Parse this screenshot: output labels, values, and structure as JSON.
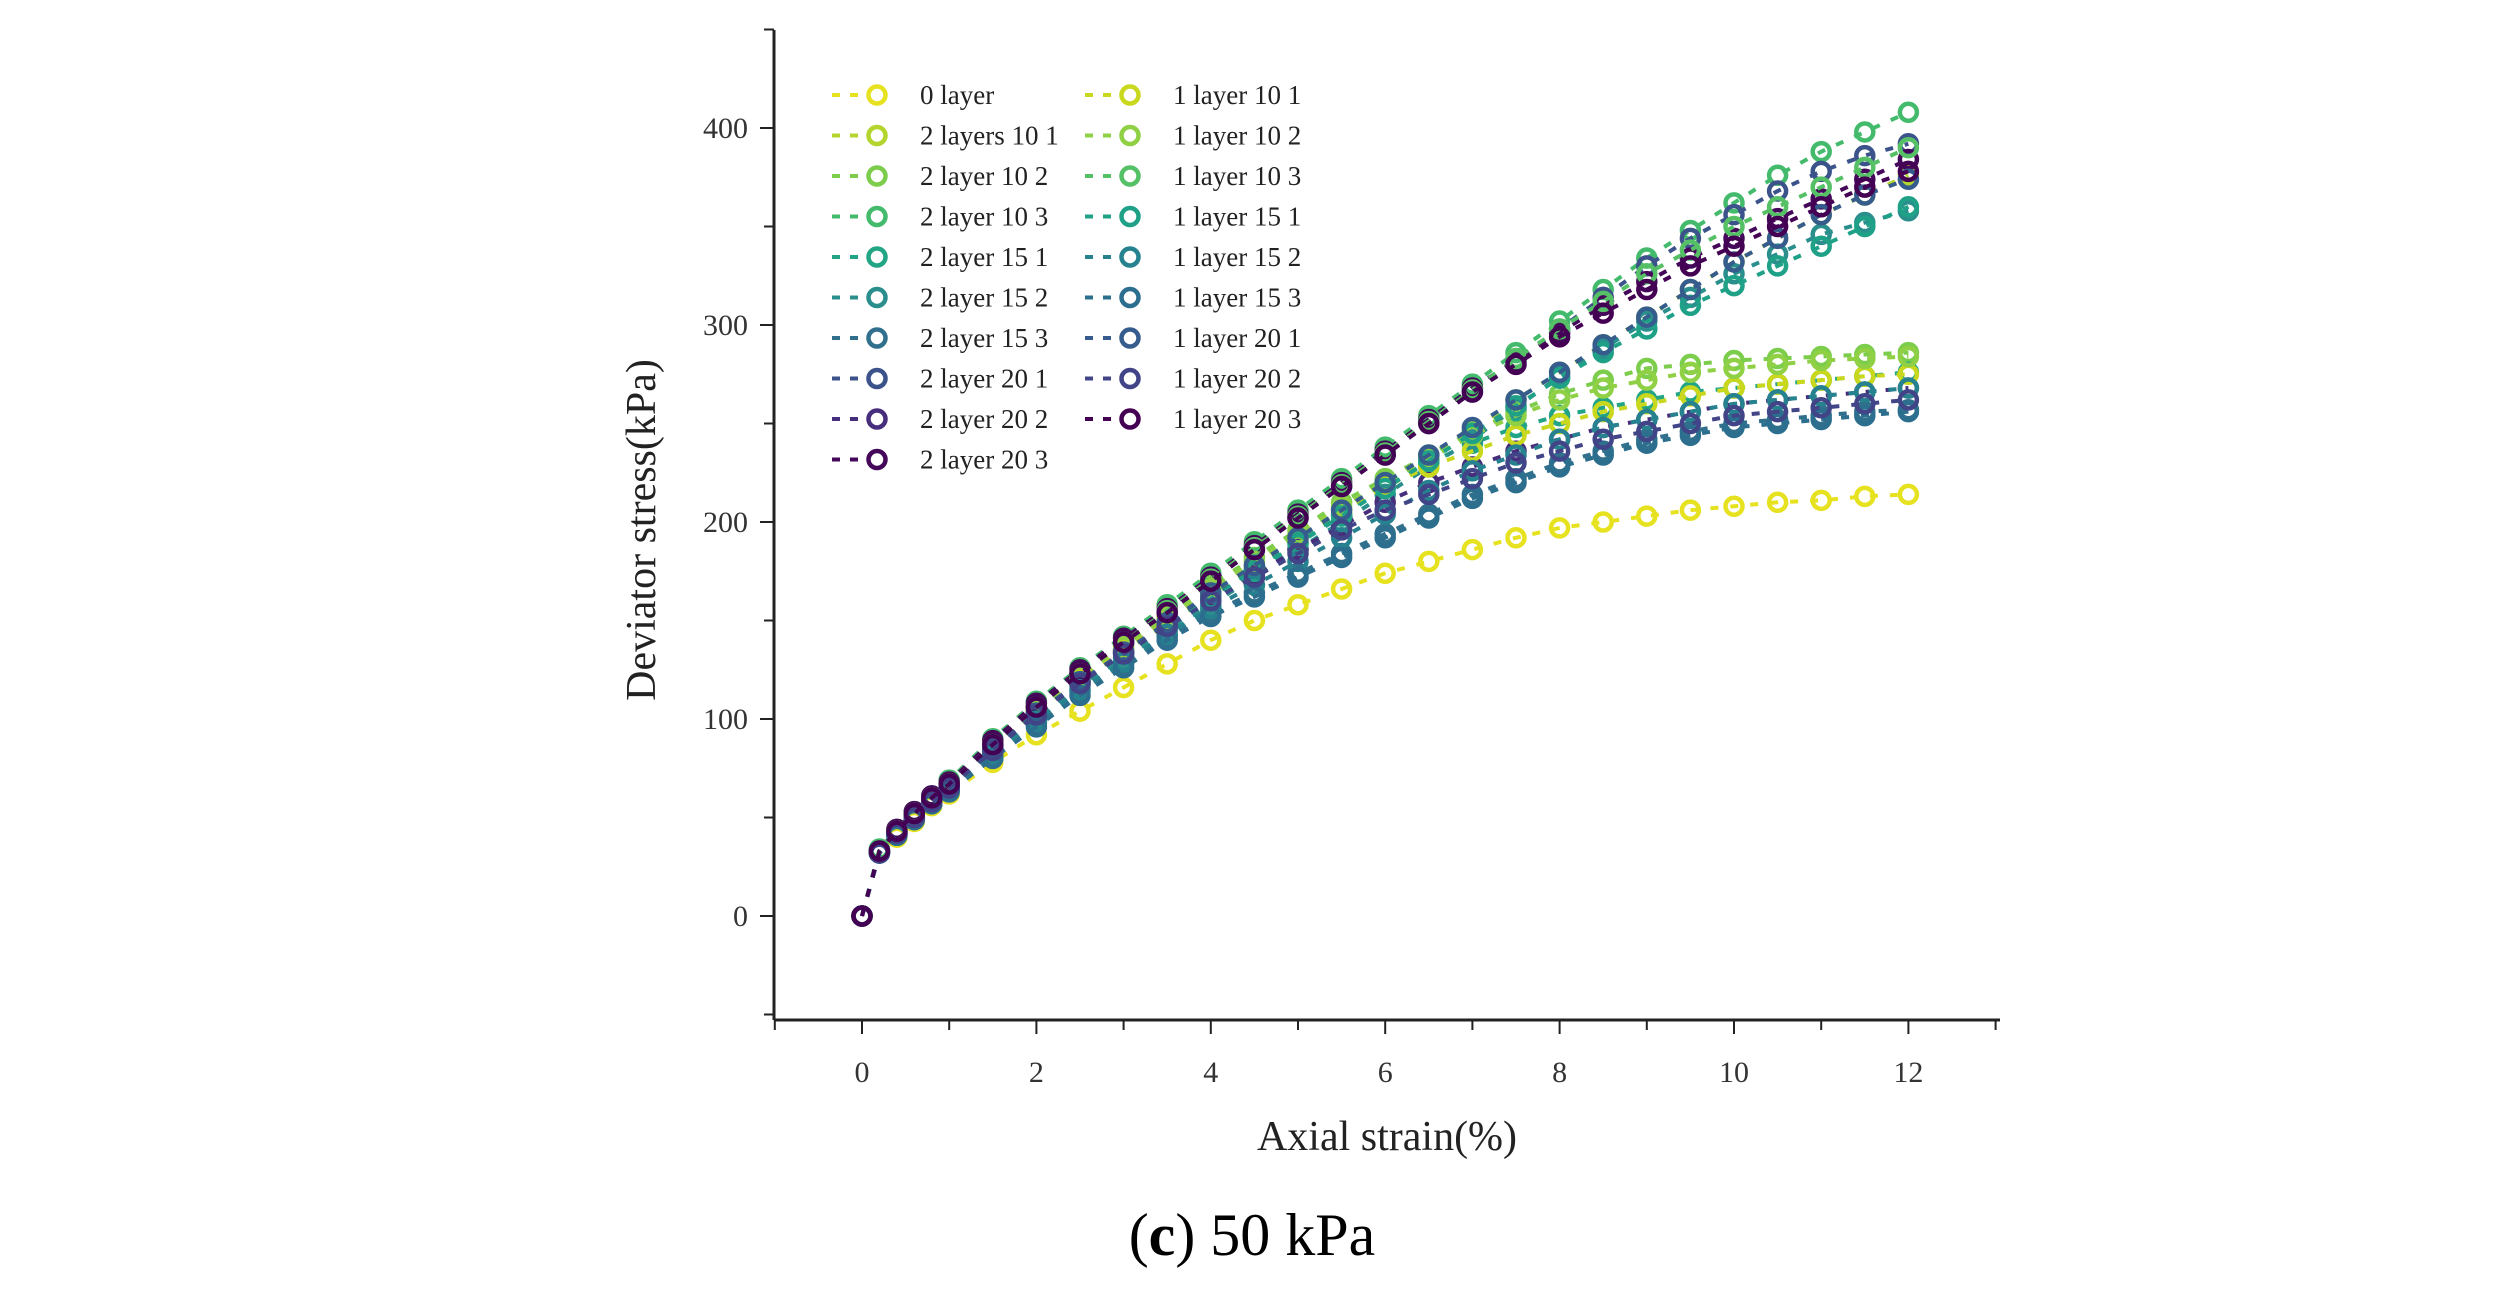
{
  "chart_data": {
    "type": "scatter",
    "title": "",
    "xlabel": "Axial strain(%)",
    "ylabel": "Deviator stress(kPa)",
    "xlim": [
      -1,
      13
    ],
    "ylim": [
      -50,
      450
    ],
    "x_ticks": [
      "0",
      "2",
      "4",
      "6",
      "8",
      "10",
      "12"
    ],
    "y_ticks": [
      "0",
      "100",
      "200",
      "300",
      "400"
    ],
    "caption": {
      "open": "(",
      "letter": "c",
      "close": ")",
      "text": " 50 kPa"
    },
    "legend_position": "top-left",
    "x": [
      0,
      0.2,
      0.4,
      0.6,
      0.8,
      1.0,
      1.5,
      2.0,
      2.5,
      3.0,
      3.5,
      4.0,
      4.5,
      5.0,
      5.5,
      6.0,
      6.5,
      7.0,
      7.5,
      8.0,
      8.5,
      9.0,
      9.5,
      10.0,
      10.5,
      11.0,
      11.5,
      12.0
    ],
    "series": [
      {
        "name": "0 layer",
        "color": "#e7e21f",
        "values": [
          0,
          32,
          40,
          48,
          56,
          62,
          78,
          92,
          104,
          116,
          128,
          140,
          150,
          158,
          166,
          174,
          180,
          186,
          192,
          197,
          200,
          203,
          206,
          208,
          210,
          211,
          213,
          214
        ]
      },
      {
        "name": "2 layers 10 1",
        "color": "#b4d52e",
        "values": [
          0,
          33,
          43,
          51,
          59,
          66,
          86,
          104,
          120,
          134,
          148,
          162,
          176,
          190,
          204,
          218,
          232,
          246,
          262,
          276,
          290,
          304,
          318,
          332,
          344,
          356,
          366,
          376
        ]
      },
      {
        "name": "2 layer 10 2",
        "color": "#7ccd4c",
        "values": [
          0,
          33,
          43,
          52,
          60,
          67,
          87,
          106,
          123,
          138,
          153,
          168,
          182,
          196,
          210,
          222,
          234,
          246,
          256,
          265,
          272,
          278,
          280,
          282,
          283,
          284,
          285,
          286
        ]
      },
      {
        "name": "2 layer 10 3",
        "color": "#44bb6c",
        "values": [
          0,
          34,
          44,
          53,
          61,
          69,
          90,
          109,
          126,
          142,
          158,
          174,
          190,
          206,
          222,
          238,
          254,
          270,
          286,
          302,
          318,
          334,
          348,
          362,
          376,
          388,
          398,
          408
        ]
      },
      {
        "name": "2 layer 15 1",
        "color": "#22a584",
        "values": [
          0,
          33,
          43,
          51,
          59,
          66,
          86,
          104,
          120,
          135,
          149,
          162,
          176,
          190,
          204,
          218,
          230,
          240,
          248,
          254,
          258,
          262,
          266,
          268,
          270,
          272,
          274,
          276
        ]
      },
      {
        "name": "2 layer 15 2",
        "color": "#2a8f8c",
        "values": [
          0,
          32,
          42,
          50,
          58,
          65,
          84,
          101,
          117,
          131,
          145,
          158,
          172,
          186,
          200,
          214,
          228,
          242,
          258,
          274,
          288,
          302,
          314,
          326,
          336,
          346,
          352,
          358
        ]
      },
      {
        "name": "2 layer 15 3",
        "color": "#31708d",
        "values": [
          0,
          32,
          41,
          49,
          57,
          64,
          82,
          98,
          114,
          128,
          142,
          154,
          164,
          174,
          184,
          194,
          204,
          214,
          222,
          230,
          236,
          242,
          246,
          250,
          252,
          254,
          256,
          257
        ]
      },
      {
        "name": "2 layer 20 1",
        "color": "#3b538a",
        "values": [
          0,
          33,
          43,
          52,
          60,
          67,
          87,
          106,
          123,
          139,
          154,
          170,
          186,
          202,
          218,
          234,
          250,
          266,
          282,
          298,
          314,
          330,
          344,
          356,
          368,
          378,
          386,
          392
        ]
      },
      {
        "name": "2 layer 20 2",
        "color": "#472e7c",
        "values": [
          0,
          32,
          42,
          50,
          58,
          65,
          85,
          103,
          119,
          134,
          148,
          162,
          174,
          186,
          198,
          210,
          220,
          228,
          236,
          242,
          248,
          252,
          256,
          260,
          262,
          264,
          266,
          268
        ]
      },
      {
        "name": "2 layer 20 3",
        "color": "#44075a",
        "values": [
          0,
          33,
          44,
          53,
          61,
          68,
          89,
          108,
          125,
          141,
          156,
          172,
          188,
          204,
          220,
          236,
          252,
          268,
          282,
          296,
          310,
          322,
          334,
          344,
          354,
          364,
          374,
          384
        ]
      },
      {
        "name": "1 layer 10 1",
        "color": "#c9d81c",
        "values": [
          0,
          33,
          43,
          51,
          59,
          66,
          86,
          104,
          120,
          135,
          150,
          164,
          178,
          192,
          206,
          218,
          228,
          236,
          244,
          250,
          256,
          260,
          264,
          268,
          270,
          272,
          274,
          275
        ]
      },
      {
        "name": "1 layer 10 2",
        "color": "#8fd045",
        "values": [
          0,
          33,
          43,
          52,
          60,
          67,
          87,
          105,
          122,
          137,
          152,
          166,
          180,
          194,
          208,
          220,
          232,
          244,
          254,
          262,
          268,
          272,
          276,
          278,
          280,
          282,
          283,
          284
        ]
      },
      {
        "name": "1 layer 10 3",
        "color": "#55c065",
        "values": [
          0,
          33,
          43,
          52,
          60,
          67,
          87,
          106,
          123,
          139,
          155,
          171,
          187,
          203,
          219,
          235,
          251,
          267,
          283,
          298,
          312,
          326,
          338,
          350,
          360,
          370,
          380,
          390
        ]
      },
      {
        "name": "1 layer 15 1",
        "color": "#1fa187",
        "values": [
          0,
          32,
          42,
          50,
          58,
          65,
          84,
          102,
          118,
          133,
          147,
          161,
          175,
          189,
          203,
          217,
          231,
          245,
          259,
          273,
          286,
          298,
          310,
          320,
          330,
          340,
          350,
          360
        ]
      },
      {
        "name": "1 layer 15 2",
        "color": "#26828e",
        "values": [
          0,
          32,
          41,
          49,
          57,
          64,
          82,
          99,
          115,
          129,
          143,
          156,
          168,
          180,
          192,
          204,
          216,
          226,
          234,
          242,
          248,
          252,
          256,
          260,
          262,
          264,
          266,
          268
        ]
      },
      {
        "name": "1 layer 15 3",
        "color": "#2c6e8e",
        "values": [
          0,
          32,
          41,
          49,
          57,
          63,
          80,
          96,
          112,
          126,
          140,
          152,
          162,
          172,
          182,
          192,
          202,
          212,
          220,
          228,
          234,
          240,
          244,
          248,
          250,
          252,
          254,
          256
        ]
      },
      {
        "name": "1 layer 20 1",
        "color": "#365c8d",
        "values": [
          0,
          33,
          42,
          50,
          58,
          65,
          85,
          103,
          119,
          134,
          149,
          164,
          178,
          192,
          206,
          220,
          234,
          248,
          262,
          276,
          290,
          304,
          318,
          332,
          344,
          356,
          366,
          374
        ]
      },
      {
        "name": "1 layer 20 2",
        "color": "#414487",
        "values": [
          0,
          32,
          42,
          50,
          58,
          65,
          84,
          102,
          118,
          133,
          147,
          160,
          172,
          184,
          196,
          206,
          214,
          222,
          230,
          236,
          242,
          246,
          250,
          254,
          256,
          258,
          260,
          262
        ]
      },
      {
        "name": "1 layer 20 3",
        "color": "#440154",
        "values": [
          0,
          33,
          43,
          52,
          60,
          67,
          87,
          106,
          123,
          139,
          154,
          170,
          186,
          202,
          218,
          234,
          250,
          266,
          280,
          294,
          306,
          318,
          330,
          340,
          350,
          360,
          370,
          378
        ]
      }
    ]
  }
}
